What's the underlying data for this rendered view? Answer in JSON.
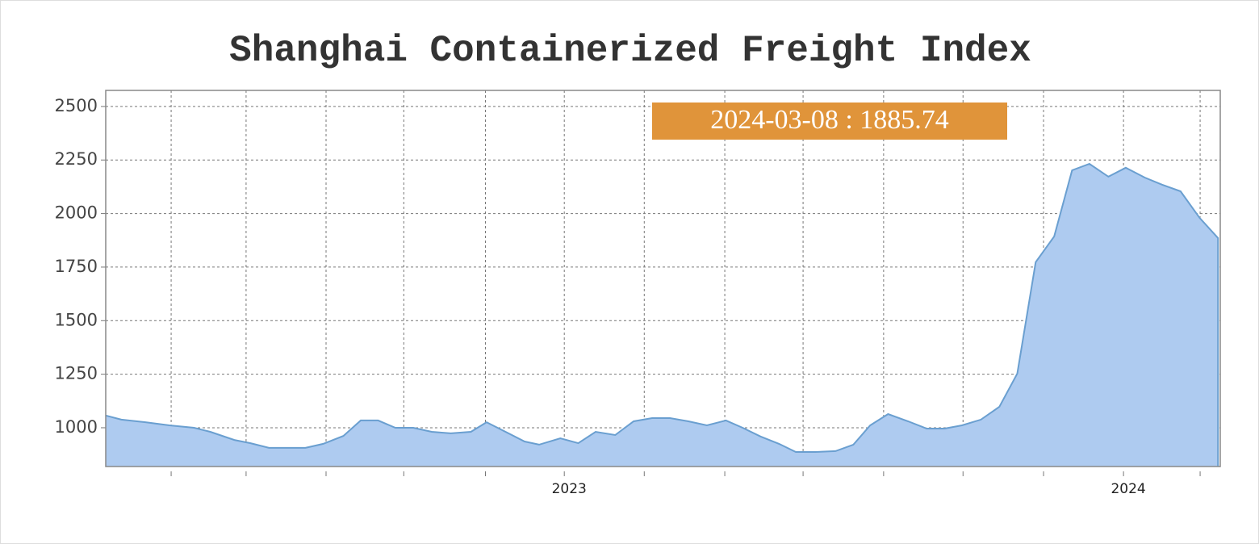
{
  "chart_data": {
    "type": "area",
    "title": "Shanghai Containerized Freight Index",
    "annotation": "2024-03-08 : 1885.74",
    "x": [
      2022.18,
      2022.208,
      2022.251,
      2022.294,
      2022.338,
      2022.367,
      2022.41,
      2022.439,
      2022.472,
      2022.537,
      2022.569,
      2022.605,
      2022.636,
      2022.667,
      2022.698,
      2022.73,
      2022.763,
      2022.797,
      2022.833,
      2022.861,
      2022.895,
      2022.929,
      2022.955,
      2022.993,
      2023.025,
      2023.056,
      2023.091,
      2023.124,
      2023.157,
      2023.189,
      2023.222,
      2023.255,
      2023.289,
      2023.319,
      2023.351,
      2023.384,
      2023.414,
      2023.449,
      2023.485,
      2023.517,
      2023.547,
      2023.579,
      2023.615,
      2023.648,
      2023.68,
      2023.711,
      2023.745,
      2023.778,
      2023.81,
      2023.843,
      2023.876,
      2023.908,
      2023.939,
      2023.973,
      2024.004,
      2024.038,
      2024.069,
      2024.102,
      2024.136,
      2024.169
    ],
    "values": [
      1057,
      1038,
      1026,
      1011,
      1000,
      981,
      943,
      928,
      906,
      906,
      925,
      962,
      1034,
      1034,
      1000,
      1000,
      981,
      974,
      981,
      1026,
      981,
      936,
      921,
      951,
      928,
      981,
      966,
      1030,
      1045,
      1045,
      1030,
      1011,
      1034,
      1000,
      959,
      925,
      887,
      887,
      891,
      921,
      1011,
      1064,
      1030,
      996,
      996,
      1011,
      1038,
      1098,
      1253,
      1773,
      1893,
      2202,
      2232,
      2172,
      2214,
      2168,
      2135,
      2104,
      1980,
      1885.74
    ],
    "color": "#aecbf0",
    "line_color": "#6a9fd0",
    "annotation_color": "#e0943a",
    "xlim": [
      2022.18,
      2024.173
    ],
    "ylim": [
      819,
      2575
    ],
    "xticks": [
      {
        "value": 2023,
        "label": "2023"
      },
      {
        "value": 2024,
        "label": "2024"
      }
    ],
    "xgrid": [
      2022.297,
      2022.431,
      2022.574,
      2022.713,
      2022.859,
      2023.143,
      2023.287,
      2023.427,
      2023.571,
      2023.713,
      2023.857,
      2024.137
    ],
    "yticks": [
      1000,
      1250,
      1500,
      1750,
      2000,
      2250,
      2500
    ],
    "grid": true
  }
}
